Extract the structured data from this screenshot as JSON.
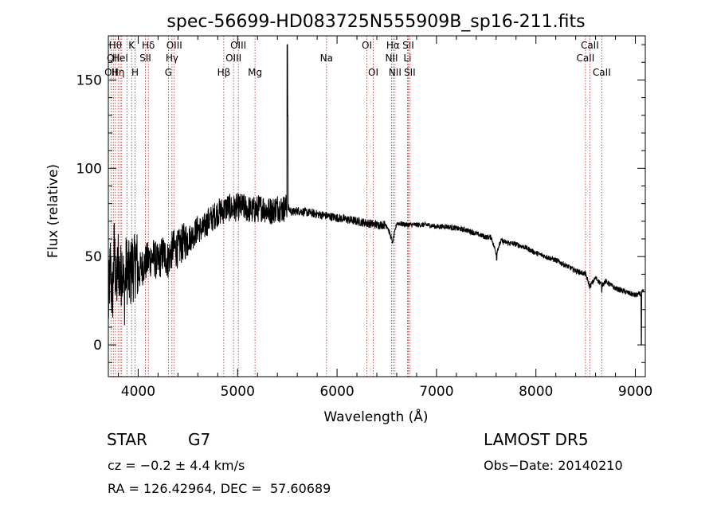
{
  "chart_data": {
    "type": "line",
    "title": "spec-56699-HD083725N555909B_sp16-211.fits",
    "xlabel": "Wavelength (Å)",
    "ylabel": "Flux (relative)",
    "xlim": [
      3700,
      9100
    ],
    "ylim": [
      -18,
      175
    ],
    "x_ticks": [
      4000,
      5000,
      6000,
      7000,
      8000,
      9000
    ],
    "y_ticks": [
      0,
      50,
      100,
      150
    ],
    "grid": false,
    "series": [
      {
        "x": [
          3700,
          3720,
          3740,
          3760,
          3780,
          3800,
          3820,
          3840,
          3860,
          3880,
          3900,
          3920,
          3940,
          3960,
          3980,
          4000,
          4050,
          4100,
          4150,
          4200,
          4250,
          4300,
          4350,
          4400,
          4450,
          4500,
          4550,
          4600,
          4650,
          4700,
          4750,
          4800,
          4850,
          4900,
          4950,
          5000,
          5050,
          5100,
          5150,
          5200,
          5250,
          5300,
          5350,
          5400,
          5450,
          5500,
          5550,
          5600,
          5700,
          5800,
          5900,
          6000,
          6100,
          6200,
          6300,
          6400,
          6500,
          6560,
          6600,
          6700,
          6800,
          6900,
          7000,
          7100,
          7200,
          7300,
          7400,
          7500,
          7550,
          7600,
          7650,
          7700,
          7800,
          7900,
          8000,
          8100,
          8200,
          8300,
          8400,
          8500,
          8542,
          8600,
          8662,
          8700,
          8800,
          8900,
          9000,
          9050,
          9080
        ],
        "y": [
          20,
          45,
          25,
          55,
          30,
          50,
          35,
          48,
          28,
          44,
          40,
          38,
          46,
          42,
          50,
          40,
          45,
          48,
          50,
          46,
          52,
          48,
          55,
          54,
          58,
          60,
          62,
          66,
          65,
          70,
          72,
          75,
          76,
          78,
          77,
          78,
          78,
          77,
          76,
          77,
          78,
          76,
          76,
          78,
          77,
          78,
          75,
          76,
          75,
          74,
          73,
          72,
          71,
          70,
          69,
          68,
          68,
          58,
          69,
          68,
          68,
          68,
          67,
          67,
          66,
          65,
          63,
          61,
          61,
          52,
          59,
          58,
          57,
          55,
          52,
          50,
          48,
          45,
          42,
          40,
          33,
          38,
          34,
          36,
          32,
          30,
          28,
          29,
          30
        ],
        "features": [
          {
            "x": 5500,
            "y": 170
          },
          {
            "x": 5505,
            "y": 130
          },
          {
            "x": 6560,
            "y": 58
          },
          {
            "x": 7605,
            "y": 48
          },
          {
            "x": 8542,
            "y": 32
          },
          {
            "x": 8662,
            "y": 30
          },
          {
            "x": 9060,
            "y": 0
          }
        ]
      }
    ],
    "line_markers": [
      {
        "wl": 3727,
        "label": "OII",
        "row": 3
      },
      {
        "wl": 3750,
        "label": "QII",
        "row": 2
      },
      {
        "wl": 3771,
        "label": "Hθ",
        "row": 1
      },
      {
        "wl": 3798,
        "label": "Hη",
        "row": 3
      },
      {
        "wl": 3820,
        "label": "HeI",
        "row": 2
      },
      {
        "wl": 3835,
        "label": "",
        "row": 0
      },
      {
        "wl": 3889,
        "label": "",
        "row": 0
      },
      {
        "wl": 3934,
        "label": "K",
        "row": 1
      },
      {
        "wl": 3969,
        "label": "H",
        "row": 3
      },
      {
        "wl": 4072,
        "label": "SII",
        "row": 2
      },
      {
        "wl": 4102,
        "label": "Hδ",
        "row": 1
      },
      {
        "wl": 4304,
        "label": "G",
        "row": 3
      },
      {
        "wl": 4340,
        "label": "Hγ",
        "row": 2
      },
      {
        "wl": 4363,
        "label": "OIII",
        "row": 1
      },
      {
        "wl": 4861,
        "label": "Hβ",
        "row": 3
      },
      {
        "wl": 4959,
        "label": "OIII",
        "row": 2
      },
      {
        "wl": 5007,
        "label": "OIII",
        "row": 1
      },
      {
        "wl": 5175,
        "label": "Mg",
        "row": 3
      },
      {
        "wl": 5894,
        "label": "Na",
        "row": 2
      },
      {
        "wl": 6300,
        "label": "OI",
        "row": 1
      },
      {
        "wl": 6364,
        "label": "OI",
        "row": 3
      },
      {
        "wl": 6548,
        "label": "NII",
        "row": 2
      },
      {
        "wl": 6563,
        "label": "Hα",
        "row": 1
      },
      {
        "wl": 6583,
        "label": "NII",
        "row": 3
      },
      {
        "wl": 6708,
        "label": "Li",
        "row": 2
      },
      {
        "wl": 6716,
        "label": "SII",
        "row": 1
      },
      {
        "wl": 6731,
        "label": "SII",
        "row": 3
      },
      {
        "wl": 8498,
        "label": "CaII",
        "row": 2
      },
      {
        "wl": 8542,
        "label": "CaII",
        "row": 1
      },
      {
        "wl": 8662,
        "label": "CaII",
        "row": 3
      }
    ]
  },
  "info": {
    "object_class": "STAR",
    "subclass": "G7",
    "survey": "LAMOST DR5",
    "cz": "cz = −0.2 ± 4.4 km/s",
    "obs_date": "Obs−Date: 20140210",
    "coords": "RA = 126.42964, DEC =  57.60689"
  },
  "colors": {
    "marker_line": "#b22222",
    "spectrum": "#000000",
    "axes": "#000000"
  }
}
